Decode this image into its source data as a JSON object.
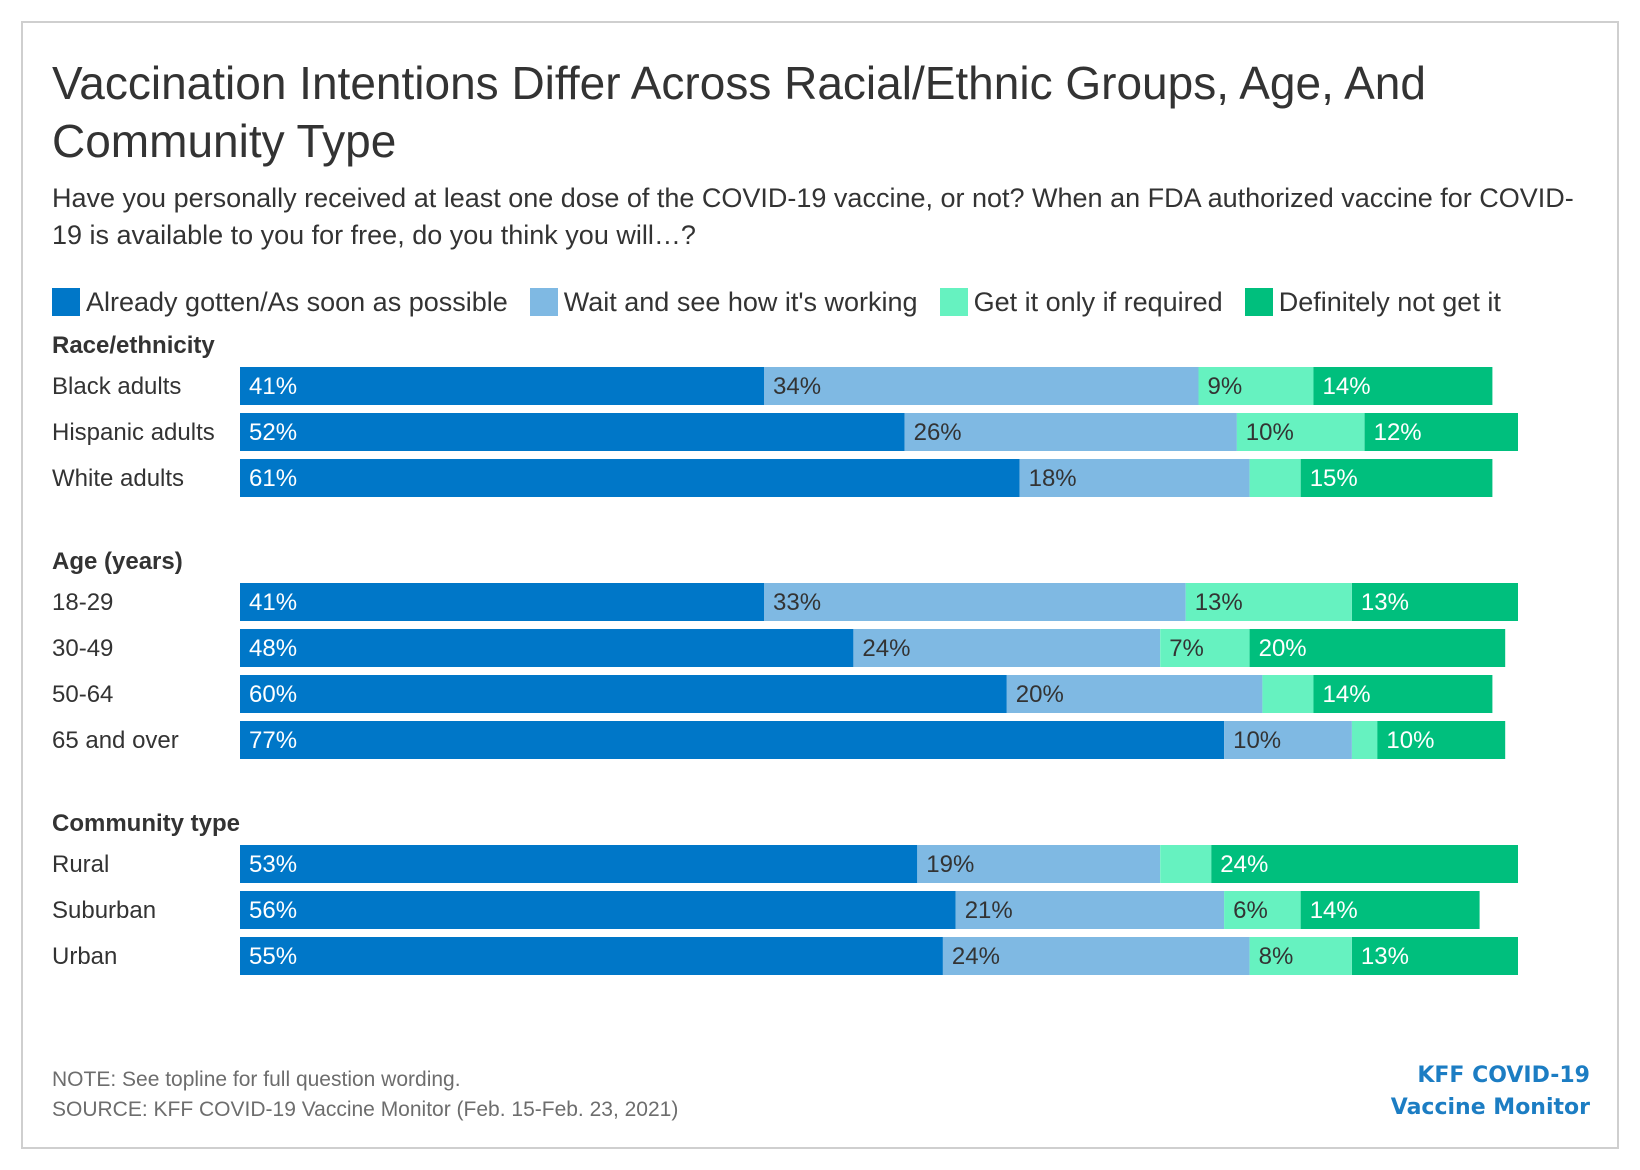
{
  "title": "Vaccination Intentions Differ Across Racial/Ethnic Groups, Age, And Community Type",
  "subtitle": "Have you personally received at least one dose of the COVID-19 vaccine, or not? When an FDA authorized vaccine for COVID-19 is available to you for free, do you think you will…?",
  "note": "NOTE: See topline for full question wording.",
  "source": "SOURCE: KFF COVID-19 Vaccine Monitor (Feb. 15-Feb. 23, 2021)",
  "logo": {
    "line1": "KFF COVID-19",
    "line2": "Vaccine Monitor",
    "color": "#1c7dc3"
  },
  "chart_data": {
    "type": "bar",
    "orientation": "horizontal",
    "stacked": true,
    "unit": "%",
    "legend_position": "top",
    "series": [
      {
        "name": "Already gotten/As soon as possible",
        "color": "#0077c8"
      },
      {
        "name": "Wait and see how it's working",
        "color": "#7fb9e3"
      },
      {
        "name": "Get it only if required",
        "color": "#66f2c0"
      },
      {
        "name": "Definitely not get it",
        "color": "#00bf7d"
      }
    ],
    "groups": [
      {
        "label": "Race/ethnicity",
        "rows": [
          {
            "label": "Black adults",
            "values": [
              41,
              34,
              9,
              14
            ],
            "labels": [
              "41%",
              "34%",
              "9%",
              "14%"
            ]
          },
          {
            "label": "Hispanic adults",
            "values": [
              52,
              26,
              10,
              12
            ],
            "labels": [
              "52%",
              "26%",
              "10%",
              "12%"
            ]
          },
          {
            "label": "White adults",
            "values": [
              61,
              18,
              4,
              15
            ],
            "labels": [
              "61%",
              "18%",
              "",
              "15%"
            ]
          }
        ]
      },
      {
        "label": "Age (years)",
        "rows": [
          {
            "label": "18-29",
            "values": [
              41,
              33,
              13,
              13
            ],
            "labels": [
              "41%",
              "33%",
              "13%",
              "13%"
            ]
          },
          {
            "label": "30-49",
            "values": [
              48,
              24,
              7,
              20
            ],
            "labels": [
              "48%",
              "24%",
              "7%",
              "20%"
            ]
          },
          {
            "label": "50-64",
            "values": [
              60,
              20,
              4,
              14
            ],
            "labels": [
              "60%",
              "20%",
              "",
              "14%"
            ]
          },
          {
            "label": "65 and over",
            "values": [
              77,
              10,
              2,
              10
            ],
            "labels": [
              "77%",
              "10%",
              "",
              "10%"
            ]
          }
        ]
      },
      {
        "label": "Community type",
        "rows": [
          {
            "label": "Rural",
            "values": [
              53,
              19,
              4,
              24
            ],
            "labels": [
              "53%",
              "19%",
              "",
              "24%"
            ]
          },
          {
            "label": "Suburban",
            "values": [
              56,
              21,
              6,
              14
            ],
            "labels": [
              "56%",
              "21%",
              "6%",
              "14%"
            ]
          },
          {
            "label": "Urban",
            "values": [
              55,
              24,
              8,
              13
            ],
            "labels": [
              "55%",
              "24%",
              "8%",
              "13%"
            ]
          }
        ]
      }
    ]
  }
}
